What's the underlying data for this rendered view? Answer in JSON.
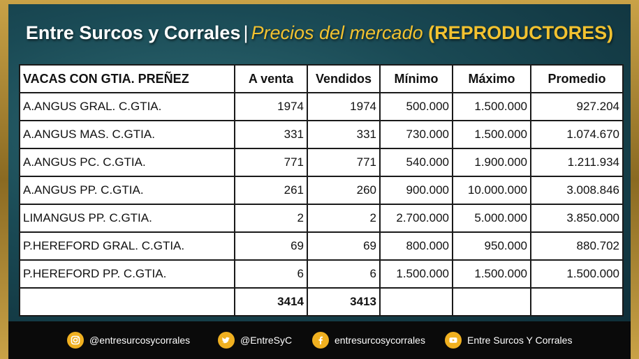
{
  "header": {
    "title_main": "Entre Surcos y Corrales",
    "title_sep": "|",
    "title_sub": "Precios del mercado",
    "title_category": "(REPRODUCTORES)"
  },
  "table": {
    "columns": [
      "VACAS CON GTIA. PREÑEZ",
      "A venta",
      "Vendidos",
      "Mínimo",
      "Máximo",
      "Promedio"
    ],
    "rows": [
      [
        "A.ANGUS GRAL. C.GTIA.",
        "1974",
        "1974",
        "500.000",
        "1.500.000",
        "927.204"
      ],
      [
        "A.ANGUS MAS. C.GTIA.",
        "331",
        "331",
        "730.000",
        "1.500.000",
        "1.074.670"
      ],
      [
        "A.ANGUS PC. C.GTIA.",
        "771",
        "771",
        "540.000",
        "1.900.000",
        "1.211.934"
      ],
      [
        "A.ANGUS PP. C.GTIA.",
        "261",
        "260",
        "900.000",
        "10.000.000",
        "3.008.846"
      ],
      [
        "LIMANGUS PP. C.GTIA.",
        "2",
        "2",
        "2.700.000",
        "5.000.000",
        "3.850.000"
      ],
      [
        "P.HEREFORD GRAL. C.GTIA.",
        "69",
        "69",
        "800.000",
        "950.000",
        "880.702"
      ],
      [
        "P.HEREFORD PP. C.GTIA.",
        "6",
        "6",
        "1.500.000",
        "1.500.000",
        "1.500.000"
      ]
    ],
    "totals": [
      "",
      "3414",
      "3413",
      "",
      "",
      ""
    ]
  },
  "footer": {
    "instagram": {
      "icon": "instagram-icon",
      "label": "@entresurcosycorrales"
    },
    "twitter": {
      "icon": "twitter-icon",
      "label": "@EntreSyC"
    },
    "facebook": {
      "icon": "facebook-icon",
      "label": "entresurcosycorrales"
    },
    "youtube": {
      "icon": "youtube-icon",
      "label": "Entre Surcos Y Corrales"
    }
  },
  "colors": {
    "accent": "#f2c230",
    "badge": "#f0b020",
    "panel": "#1a4a55",
    "gold_frame": "#c9a247"
  }
}
